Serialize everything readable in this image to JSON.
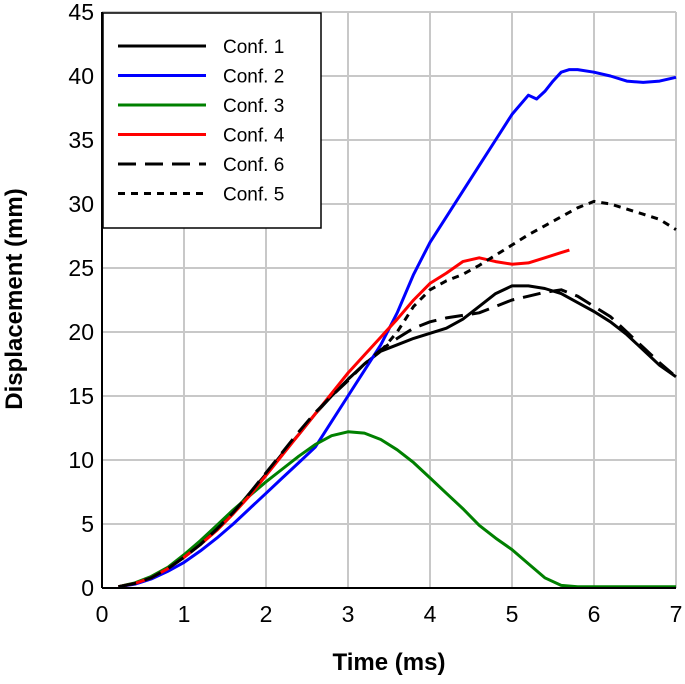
{
  "chart_data": {
    "type": "line",
    "title": "",
    "xlabel": "Time (ms)",
    "ylabel": "Displacement (mm)",
    "xlim": [
      0,
      7
    ],
    "ylim": [
      0,
      45
    ],
    "xticks": [
      0,
      1,
      2,
      3,
      4,
      5,
      6,
      7
    ],
    "yticks": [
      0,
      5,
      10,
      15,
      20,
      25,
      30,
      35,
      40,
      45
    ],
    "grid": true,
    "legend": {
      "position": "top-left",
      "order": [
        "Conf. 1",
        "Conf. 2",
        "Conf. 3",
        "Conf. 4",
        "Conf. 6",
        "Conf. 5"
      ]
    },
    "series": [
      {
        "name": "Conf. 1",
        "color": "#000000",
        "dash": "solid",
        "points": [
          [
            0.2,
            0.1
          ],
          [
            0.4,
            0.35
          ],
          [
            0.6,
            0.8
          ],
          [
            0.8,
            1.5
          ],
          [
            1.0,
            2.4
          ],
          [
            1.2,
            3.4
          ],
          [
            1.4,
            4.6
          ],
          [
            1.6,
            5.9
          ],
          [
            1.8,
            7.4
          ],
          [
            2.0,
            8.9
          ],
          [
            2.2,
            10.5
          ],
          [
            2.4,
            12.0
          ],
          [
            2.6,
            13.6
          ],
          [
            2.8,
            15.0
          ],
          [
            3.0,
            16.3
          ],
          [
            3.2,
            17.5
          ],
          [
            3.4,
            18.5
          ],
          [
            3.6,
            19.0
          ],
          [
            3.8,
            19.5
          ],
          [
            4.0,
            19.9
          ],
          [
            4.2,
            20.3
          ],
          [
            4.4,
            21.0
          ],
          [
            4.6,
            22.0
          ],
          [
            4.8,
            23.0
          ],
          [
            5.0,
            23.6
          ],
          [
            5.2,
            23.6
          ],
          [
            5.4,
            23.4
          ],
          [
            5.6,
            23.0
          ],
          [
            5.8,
            22.3
          ],
          [
            6.0,
            21.6
          ],
          [
            6.2,
            20.8
          ],
          [
            6.4,
            19.8
          ],
          [
            6.6,
            18.6
          ],
          [
            6.8,
            17.4
          ],
          [
            7.0,
            16.5
          ]
        ]
      },
      {
        "name": "Conf. 2",
        "color": "#0000ff",
        "dash": "solid",
        "points": [
          [
            0.2,
            0.1
          ],
          [
            0.4,
            0.3
          ],
          [
            0.6,
            0.7
          ],
          [
            0.8,
            1.3
          ],
          [
            1.0,
            2.0
          ],
          [
            1.2,
            2.9
          ],
          [
            1.4,
            3.9
          ],
          [
            1.6,
            5.0
          ],
          [
            1.8,
            6.2
          ],
          [
            2.0,
            7.4
          ],
          [
            2.2,
            8.6
          ],
          [
            2.4,
            9.8
          ],
          [
            2.6,
            11.0
          ],
          [
            2.8,
            13.0
          ],
          [
            3.0,
            15.0
          ],
          [
            3.2,
            17.0
          ],
          [
            3.4,
            19.0
          ],
          [
            3.6,
            21.5
          ],
          [
            3.8,
            24.5
          ],
          [
            4.0,
            27.0
          ],
          [
            4.2,
            29.0
          ],
          [
            4.4,
            31.0
          ],
          [
            4.6,
            33.0
          ],
          [
            4.8,
            35.0
          ],
          [
            5.0,
            37.0
          ],
          [
            5.2,
            38.5
          ],
          [
            5.3,
            38.2
          ],
          [
            5.4,
            38.8
          ],
          [
            5.5,
            39.6
          ],
          [
            5.6,
            40.3
          ],
          [
            5.7,
            40.5
          ],
          [
            5.8,
            40.5
          ],
          [
            6.0,
            40.3
          ],
          [
            6.2,
            40.0
          ],
          [
            6.4,
            39.6
          ],
          [
            6.6,
            39.5
          ],
          [
            6.8,
            39.6
          ],
          [
            7.0,
            39.9
          ]
        ]
      },
      {
        "name": "Conf. 3",
        "color": "#008000",
        "dash": "solid",
        "points": [
          [
            0.2,
            0.1
          ],
          [
            0.4,
            0.4
          ],
          [
            0.6,
            0.9
          ],
          [
            0.8,
            1.6
          ],
          [
            1.0,
            2.6
          ],
          [
            1.2,
            3.7
          ],
          [
            1.4,
            4.9
          ],
          [
            1.6,
            6.1
          ],
          [
            1.8,
            7.2
          ],
          [
            2.0,
            8.3
          ],
          [
            2.2,
            9.3
          ],
          [
            2.4,
            10.3
          ],
          [
            2.6,
            11.2
          ],
          [
            2.8,
            11.9
          ],
          [
            3.0,
            12.2
          ],
          [
            3.2,
            12.1
          ],
          [
            3.4,
            11.6
          ],
          [
            3.6,
            10.8
          ],
          [
            3.8,
            9.8
          ],
          [
            4.0,
            8.6
          ],
          [
            4.2,
            7.4
          ],
          [
            4.4,
            6.2
          ],
          [
            4.6,
            4.9
          ],
          [
            4.8,
            3.9
          ],
          [
            5.0,
            3.0
          ],
          [
            5.2,
            1.9
          ],
          [
            5.4,
            0.8
          ],
          [
            5.6,
            0.2
          ],
          [
            5.8,
            0.1
          ],
          [
            6.0,
            0.1
          ],
          [
            7.0,
            0.1
          ]
        ]
      },
      {
        "name": "Conf. 4",
        "color": "#ff0000",
        "dash": "solid",
        "points": [
          [
            0.2,
            0.1
          ],
          [
            0.4,
            0.35
          ],
          [
            0.6,
            0.8
          ],
          [
            0.8,
            1.5
          ],
          [
            1.0,
            2.4
          ],
          [
            1.2,
            3.4
          ],
          [
            1.4,
            4.5
          ],
          [
            1.6,
            5.8
          ],
          [
            1.8,
            7.2
          ],
          [
            2.0,
            8.8
          ],
          [
            2.2,
            10.4
          ],
          [
            2.4,
            12.0
          ],
          [
            2.6,
            13.6
          ],
          [
            2.8,
            15.2
          ],
          [
            3.0,
            16.8
          ],
          [
            3.2,
            18.2
          ],
          [
            3.4,
            19.6
          ],
          [
            3.6,
            21.0
          ],
          [
            3.8,
            22.5
          ],
          [
            4.0,
            23.8
          ],
          [
            4.2,
            24.6
          ],
          [
            4.4,
            25.5
          ],
          [
            4.6,
            25.8
          ],
          [
            4.8,
            25.5
          ],
          [
            5.0,
            25.3
          ],
          [
            5.2,
            25.4
          ],
          [
            5.4,
            25.8
          ],
          [
            5.6,
            26.2
          ],
          [
            5.7,
            26.4
          ]
        ]
      },
      {
        "name": "Conf. 6",
        "color": "#000000",
        "dash": "longdash",
        "points": [
          [
            0.2,
            0.1
          ],
          [
            0.4,
            0.35
          ],
          [
            0.6,
            0.8
          ],
          [
            0.8,
            1.5
          ],
          [
            1.0,
            2.4
          ],
          [
            1.2,
            3.4
          ],
          [
            1.4,
            4.6
          ],
          [
            1.6,
            5.9
          ],
          [
            1.8,
            7.4
          ],
          [
            2.0,
            9.0
          ],
          [
            2.2,
            10.6
          ],
          [
            2.4,
            12.2
          ],
          [
            2.6,
            13.7
          ],
          [
            2.8,
            15.0
          ],
          [
            3.0,
            16.2
          ],
          [
            3.2,
            17.5
          ],
          [
            3.4,
            18.6
          ],
          [
            3.6,
            19.5
          ],
          [
            3.8,
            20.3
          ],
          [
            4.0,
            20.8
          ],
          [
            4.2,
            21.1
          ],
          [
            4.4,
            21.3
          ],
          [
            4.6,
            21.5
          ],
          [
            4.8,
            22.0
          ],
          [
            5.0,
            22.5
          ],
          [
            5.2,
            22.8
          ],
          [
            5.4,
            23.1
          ],
          [
            5.6,
            23.3
          ],
          [
            5.8,
            22.8
          ],
          [
            6.0,
            22.0
          ],
          [
            6.2,
            21.2
          ],
          [
            6.4,
            20.0
          ],
          [
            6.6,
            18.8
          ],
          [
            6.8,
            17.6
          ],
          [
            7.0,
            16.5
          ]
        ]
      },
      {
        "name": "Conf. 5",
        "color": "#000000",
        "dash": "shortdash",
        "points": [
          [
            3.4,
            18.5
          ],
          [
            3.6,
            20.0
          ],
          [
            3.8,
            22.0
          ],
          [
            4.0,
            23.3
          ],
          [
            4.2,
            24.0
          ],
          [
            4.4,
            24.5
          ],
          [
            4.6,
            25.2
          ],
          [
            4.8,
            26.0
          ],
          [
            5.0,
            26.8
          ],
          [
            5.2,
            27.6
          ],
          [
            5.4,
            28.3
          ],
          [
            5.6,
            29.0
          ],
          [
            5.8,
            29.7
          ],
          [
            6.0,
            30.2
          ],
          [
            6.2,
            30.0
          ],
          [
            6.4,
            29.6
          ],
          [
            6.6,
            29.2
          ],
          [
            6.8,
            28.8
          ],
          [
            7.0,
            28.0
          ]
        ]
      }
    ]
  }
}
